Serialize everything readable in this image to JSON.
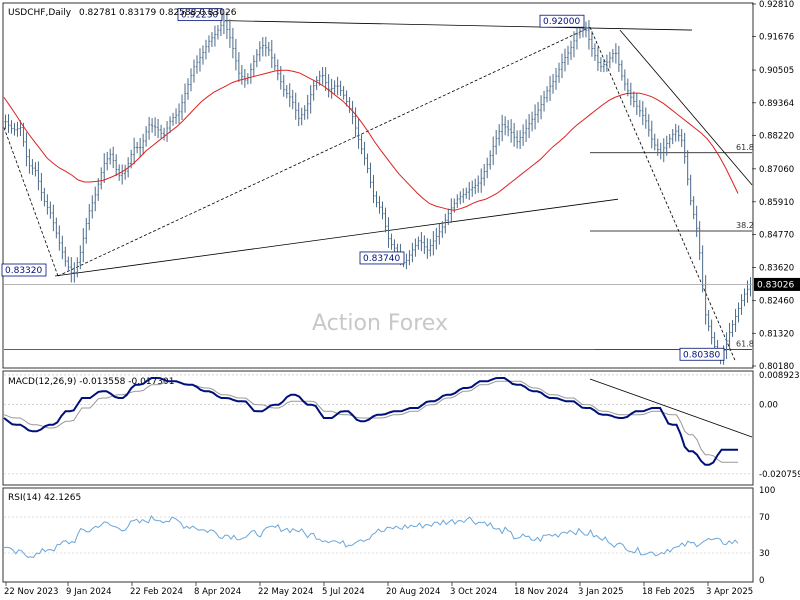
{
  "chart_data": {
    "type": "candlestick",
    "symbol_header": "USDCHF,Daily",
    "ohlc_header": "0.82781 0.83179 0.82588 0.83026",
    "watermark": "Action Forex",
    "current_price": 0.83026,
    "current_price_label": "0.83026",
    "price_axis": {
      "ylim": [
        0.8018,
        0.9281
      ],
      "ticks": [
        {
          "v": 0.9281,
          "label": "0.92810"
        },
        {
          "v": 0.91676,
          "label": "0.91676"
        },
        {
          "v": 0.90505,
          "label": "0.90505"
        },
        {
          "v": 0.89364,
          "label": "0.89364"
        },
        {
          "v": 0.8822,
          "label": "0.88220"
        },
        {
          "v": 0.8706,
          "label": "0.87060"
        },
        {
          "v": 0.8591,
          "label": "0.85910"
        },
        {
          "v": 0.8477,
          "label": "0.84770"
        },
        {
          "v": 0.8362,
          "label": "0.83620"
        },
        {
          "v": 0.8246,
          "label": "0.82460"
        },
        {
          "v": 0.8132,
          "label": "0.81320"
        },
        {
          "v": 0.8018,
          "label": "0.80180"
        }
      ]
    },
    "x_labels": [
      "22 Nov 2023",
      "9 Jan 2024",
      "22 Feb 2024",
      "8 Apr 2024",
      "22 May 2024",
      "5 Jul 2024",
      "20 Aug 2024",
      "3 Oct 2024",
      "18 Nov 2024",
      "3 Jan 2025",
      "18 Feb 2025",
      "3 Apr 2025"
    ],
    "price_path": [
      [
        0.887,
        0.884
      ],
      [
        0.885,
        0.872
      ],
      [
        0.87,
        0.86
      ],
      [
        0.855,
        0.846
      ],
      [
        0.838,
        0.8332
      ],
      [
        0.842,
        0.855
      ],
      [
        0.862,
        0.872
      ],
      [
        0.876,
        0.868
      ],
      [
        0.87,
        0.878
      ],
      [
        0.878,
        0.886
      ],
      [
        0.885,
        0.882
      ],
      [
        0.888,
        0.89
      ],
      [
        0.898,
        0.906
      ],
      [
        0.91,
        0.915
      ],
      [
        0.918,
        0.9223
      ],
      [
        0.915,
        0.904
      ],
      [
        0.901,
        0.908
      ],
      [
        0.914,
        0.912
      ],
      [
        0.905,
        0.898
      ],
      [
        0.895,
        0.888
      ],
      [
        0.892,
        0.9
      ],
      [
        0.904,
        0.898
      ],
      [
        0.9,
        0.896
      ],
      [
        0.89,
        0.88
      ],
      [
        0.872,
        0.86
      ],
      [
        0.856,
        0.845
      ],
      [
        0.842,
        0.8374
      ],
      [
        0.842,
        0.846
      ],
      [
        0.842,
        0.846
      ],
      [
        0.85,
        0.856
      ],
      [
        0.86,
        0.862
      ],
      [
        0.864,
        0.866
      ],
      [
        0.872,
        0.88
      ],
      [
        0.886,
        0.884
      ],
      [
        0.88,
        0.884
      ],
      [
        0.888,
        0.892
      ],
      [
        0.898,
        0.902
      ],
      [
        0.908,
        0.912
      ],
      [
        0.918,
        0.92
      ],
      [
        0.912,
        0.906
      ],
      [
        0.908,
        0.912
      ],
      [
        0.902,
        0.896
      ],
      [
        0.892,
        0.888
      ],
      [
        0.88,
        0.876
      ],
      [
        0.88,
        0.884
      ],
      [
        0.88,
        0.86
      ],
      [
        0.848,
        0.82
      ],
      [
        0.81,
        0.8038
      ],
      [
        0.812,
        0.819
      ],
      [
        0.826,
        0.8303
      ]
    ],
    "ma_path": [
      [
        0.8955,
        0.89
      ],
      [
        0.884,
        0.879
      ],
      [
        0.874,
        0.871
      ],
      [
        0.869,
        0.866
      ],
      [
        0.866,
        0.8665
      ],
      [
        0.868,
        0.87
      ],
      [
        0.873,
        0.877
      ],
      [
        0.88,
        0.883
      ],
      [
        0.886,
        0.89
      ],
      [
        0.894,
        0.897
      ],
      [
        0.899,
        0.901
      ],
      [
        0.902,
        0.903
      ],
      [
        0.904,
        0.905
      ],
      [
        0.905,
        0.904
      ],
      [
        0.902,
        0.9
      ],
      [
        0.897,
        0.894
      ],
      [
        0.89,
        0.885
      ],
      [
        0.879,
        0.874
      ],
      [
        0.869,
        0.865
      ],
      [
        0.861,
        0.858
      ],
      [
        0.857,
        0.856
      ],
      [
        0.857,
        0.859
      ],
      [
        0.86,
        0.862
      ],
      [
        0.865,
        0.868
      ],
      [
        0.871,
        0.874
      ],
      [
        0.878,
        0.881
      ],
      [
        0.885,
        0.888
      ],
      [
        0.891,
        0.894
      ],
      [
        0.896,
        0.897
      ],
      [
        0.897,
        0.896
      ],
      [
        0.894,
        0.891
      ],
      [
        0.888,
        0.885
      ],
      [
        0.882,
        0.877
      ],
      [
        0.87,
        0.862
      ]
    ],
    "lines": [
      {
        "from": [
          0.8332,
          0.8332
        ],
        "to": [
          0.86,
          0.84
        ],
        "style": "solid"
      },
      {
        "from": [
          0.9223,
          0.9223
        ],
        "to": [
          0.919,
          0.919
        ],
        "style": "solid"
      },
      {
        "from": [
          0.885,
          0.885
        ],
        "to": [
          0.8332,
          0.8332
        ],
        "style": "dashed"
      },
      {
        "from": [
          0.8332,
          0.8332
        ],
        "to": [
          0.92,
          0.92
        ],
        "style": "dashed"
      },
      {
        "from": [
          0.92,
          0.92
        ],
        "to": [
          0.8038,
          0.8038
        ],
        "style": "dashed"
      },
      {
        "from": [
          0.919,
          0.919
        ],
        "to": [
          0.865,
          0.865
        ],
        "style": "solid"
      }
    ],
    "annotations": [
      {
        "label": "0.92230",
        "price": 0.9223
      },
      {
        "label": "0.92000",
        "price": 0.92
      },
      {
        "label": "0.83740",
        "price": 0.8374
      },
      {
        "label": "0.83320",
        "price": 0.8332
      },
      {
        "label": "0.80380",
        "price": 0.8038
      }
    ],
    "fib_levels": [
      {
        "label": "61.8",
        "price": 0.8762
      },
      {
        "label": "38.2",
        "price": 0.8489
      },
      {
        "label": "61.8",
        "price": 0.8075
      }
    ],
    "macd": {
      "label": "MACD(12,26,9) -0.013558 -0.017301",
      "ylim": [
        -0.0235,
        0.0095
      ],
      "ticks": [
        {
          "v": 0.008923,
          "label": "0.008923"
        },
        {
          "v": 0.0,
          "label": "0.00"
        },
        {
          "v": -0.020759,
          "label": "-0.020759"
        }
      ],
      "main": [
        -0.004,
        -0.006,
        -0.008,
        -0.006,
        -0.002,
        0.002,
        0.004,
        0.002,
        0.006,
        0.008,
        0.007,
        0.006,
        0.004,
        0.002,
        0.001,
        -0.002,
        0.0,
        0.003,
        0.0,
        -0.004,
        -0.002,
        -0.005,
        -0.003,
        -0.002,
        -0.001,
        0.001,
        0.003,
        0.005,
        0.007,
        0.008,
        0.006,
        0.004,
        0.002,
        0.001,
        -0.001,
        -0.003,
        -0.004,
        -0.002,
        -0.001,
        -0.006,
        -0.014,
        -0.018,
        -0.0135
      ],
      "signal": [
        -0.003,
        -0.004,
        -0.006,
        -0.007,
        -0.005,
        -0.001,
        0.002,
        0.003,
        0.004,
        0.006,
        0.007,
        0.006,
        0.005,
        0.003,
        0.002,
        0.0,
        -0.001,
        0.001,
        0.001,
        -0.002,
        -0.003,
        -0.004,
        -0.004,
        -0.003,
        -0.002,
        0.0,
        0.002,
        0.004,
        0.006,
        0.007,
        0.007,
        0.005,
        0.003,
        0.002,
        0.0,
        -0.002,
        -0.003,
        -0.003,
        -0.002,
        -0.003,
        -0.009,
        -0.015,
        -0.0173
      ]
    },
    "rsi": {
      "label": "RSI(14) 42.1265",
      "ylim": [
        0,
        100
      ],
      "ticks": [
        {
          "v": 100,
          "label": "100"
        },
        {
          "v": 70,
          "label": "70"
        },
        {
          "v": 30,
          "label": "30"
        },
        {
          "v": 0,
          "label": "0"
        }
      ],
      "values": [
        38,
        30,
        28,
        35,
        42,
        55,
        62,
        58,
        64,
        68,
        66,
        60,
        55,
        50,
        48,
        52,
        58,
        56,
        50,
        45,
        40,
        46,
        54,
        58,
        60,
        62,
        65,
        68,
        64,
        55,
        48,
        45,
        50,
        55,
        52,
        45,
        38,
        32,
        30,
        35,
        40,
        44,
        42
      ]
    },
    "colors": {
      "candle": "#4a6a8a",
      "ma": "#dd2222",
      "macd_main": "#00107a",
      "macd_signal": "#888888",
      "rsi": "#6aa6d9",
      "trend": "#000000"
    }
  }
}
